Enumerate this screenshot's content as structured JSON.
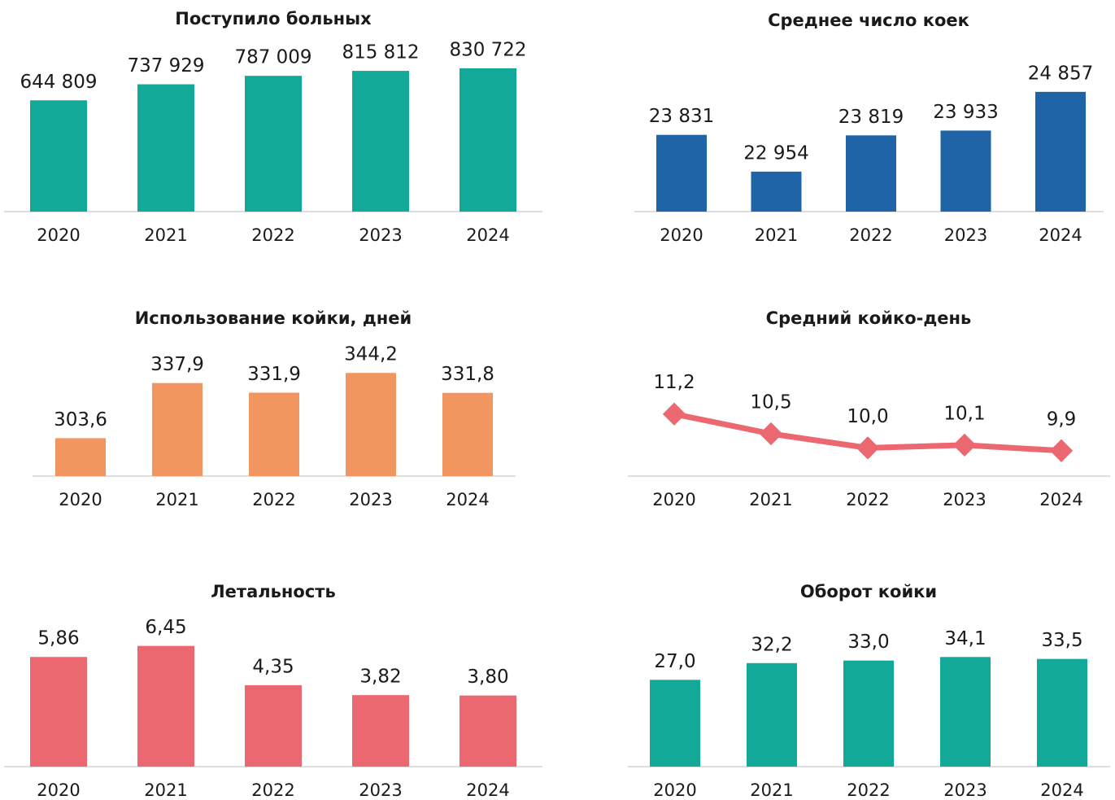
{
  "chart_data": [
    {
      "type": "bar",
      "title": "Поступило больных",
      "categories": [
        "2020",
        "2021",
        "2022",
        "2023",
        "2024"
      ],
      "values": [
        644809,
        737929,
        787009,
        815812,
        830722
      ],
      "value_labels": [
        "644 809",
        "737 929",
        "787 009",
        "815 812",
        "830 722"
      ],
      "color": "#13a999",
      "ylim": [
        0,
        1000000
      ]
    },
    {
      "type": "bar",
      "title": "Среднее число коек",
      "categories": [
        "2020",
        "2021",
        "2022",
        "2023",
        "2024"
      ],
      "values": [
        23831,
        22954,
        23819,
        23933,
        24857
      ],
      "value_labels": [
        "23 831",
        "22 954",
        "23 819",
        "23 933",
        "24 857"
      ],
      "color": "#1f64a7",
      "ylim": [
        22000,
        26000
      ]
    },
    {
      "type": "bar",
      "title": "Использование койки, дней",
      "categories": [
        "2020",
        "2021",
        "2022",
        "2023",
        "2024"
      ],
      "values": [
        303.6,
        337.9,
        331.9,
        344.2,
        331.8
      ],
      "value_labels": [
        "303,6",
        "337,9",
        "331,9",
        "344,2",
        "331,8"
      ],
      "color": "#f29661",
      "ylim": [
        280,
        360
      ]
    },
    {
      "type": "line",
      "title": "Средний койко-день",
      "categories": [
        "2020",
        "2021",
        "2022",
        "2023",
        "2024"
      ],
      "values": [
        11.2,
        10.5,
        10.0,
        10.1,
        9.9
      ],
      "value_labels": [
        "11,2",
        "10,5",
        "10,0",
        "10,1",
        "9,9"
      ],
      "color": "#ec6870",
      "ylim": [
        9,
        12
      ]
    },
    {
      "type": "bar",
      "title": "Летальность",
      "categories": [
        "2020",
        "2021",
        "2022",
        "2023",
        "2024"
      ],
      "values": [
        5.86,
        6.45,
        4.35,
        3.82,
        3.8
      ],
      "value_labels": [
        "5,86",
        "6,45",
        "4,35",
        "3,82",
        "3,80"
      ],
      "color": "#ec6870",
      "ylim": [
        0,
        8
      ]
    },
    {
      "type": "bar",
      "title": "Оборот койки",
      "categories": [
        "2020",
        "2021",
        "2022",
        "2023",
        "2024"
      ],
      "values": [
        27.0,
        32.2,
        33.0,
        34.1,
        33.5
      ],
      "value_labels": [
        "27,0",
        "32,2",
        "33,0",
        "34,1",
        "33,5"
      ],
      "color": "#13a999",
      "ylim": [
        0,
        40
      ]
    }
  ]
}
